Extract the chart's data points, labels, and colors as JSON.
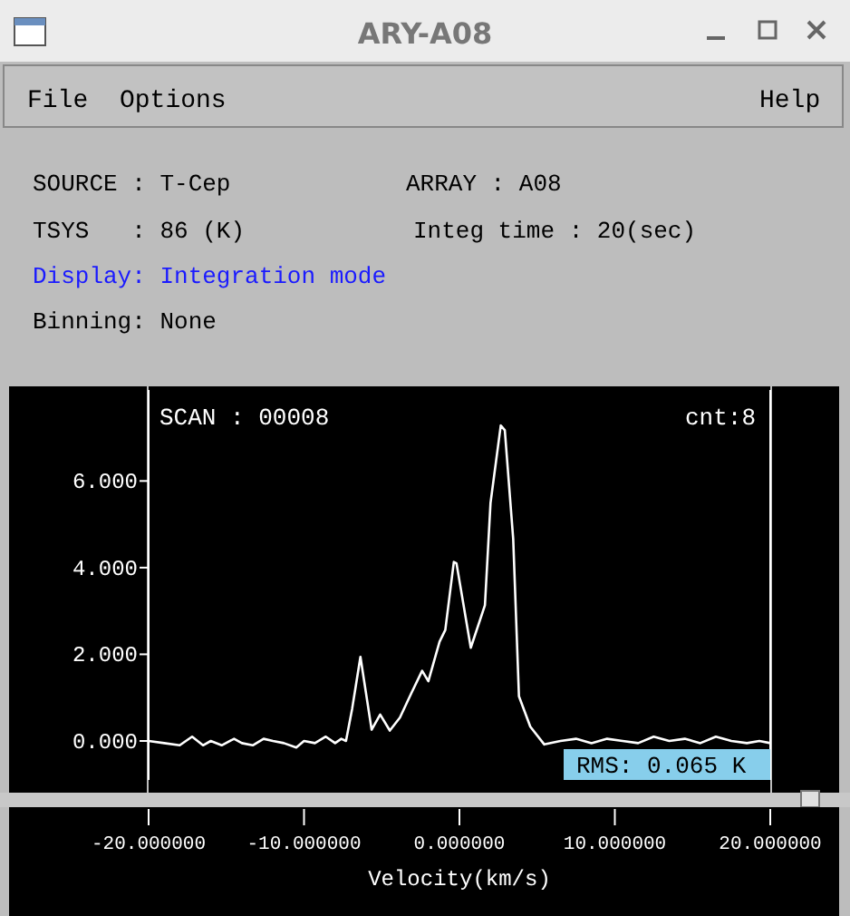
{
  "chart_data": {
    "type": "line",
    "title": "ARY-A08",
    "xlabel": "Velocity(km/s)",
    "annotations": [
      "File",
      "Options",
      "Help",
      "SOURCE : T-Cep",
      "ARRAY : A08",
      "TSYS   : 86 (K)",
      "Integ time : 20(sec)",
      "Display: Integration mode",
      "Binning: None",
      "SCAN : 00008",
      "cnt:8",
      "RMS: 0.065 K"
    ],
    "xlim": [
      -20,
      20
    ],
    "ylim": [
      -0.9,
      8.1
    ],
    "xticks": [
      {
        "value": -20,
        "label": "-20.000000"
      },
      {
        "value": -10,
        "label": "-10.000000"
      },
      {
        "value": 0,
        "label": "0.000000"
      },
      {
        "value": 10,
        "label": "10.000000"
      },
      {
        "value": 20,
        "label": "20.000000"
      }
    ],
    "yticks": [
      {
        "value": 0,
        "label": "0.000"
      },
      {
        "value": 2,
        "label": "2.000"
      },
      {
        "value": 4,
        "label": "4.000"
      },
      {
        "value": 6,
        "label": "6.000"
      }
    ],
    "grid": false,
    "marker": "none",
    "line_style": "solid",
    "series": [
      {
        "color": "#ffffff",
        "x": [
          -20,
          -19,
          -18,
          -17.2,
          -16.5,
          -16,
          -15.3,
          -14.5,
          -14,
          -13.3,
          -12.6,
          -12,
          -11.3,
          -10.5,
          -10,
          -9.3,
          -8.6,
          -8,
          -7.6,
          -7.3,
          -6.9,
          -6.37,
          -5.65,
          -5.1,
          -4.48,
          -3.83,
          -3.1,
          -2.4,
          -2.0,
          -1.28,
          -0.91,
          -0.36,
          -0.19,
          0.73,
          1.64,
          2.0,
          2.66,
          2.92,
          3.46,
          3.83,
          4.56,
          5.46,
          6.5,
          7.5,
          8.5,
          9.5,
          10.5,
          11.5,
          12.5,
          13.5,
          14.5,
          15.5,
          16.5,
          17.5,
          18.5,
          19.3,
          20
        ],
        "values": [
          0,
          -0.05,
          -0.1,
          0.1,
          -0.1,
          0,
          -0.1,
          0.05,
          -0.05,
          -0.1,
          0.05,
          0,
          -0.05,
          -0.15,
          0,
          -0.05,
          0.1,
          -0.05,
          0.05,
          0,
          0.75,
          1.94,
          0.26,
          0.61,
          0.24,
          0.54,
          1.1,
          1.62,
          1.38,
          2.29,
          2.56,
          4.13,
          4.1,
          2.15,
          3.13,
          5.49,
          7.28,
          7.17,
          4.66,
          1.03,
          0.33,
          -0.08,
          0,
          0.05,
          -0.05,
          0.05,
          0,
          -0.05,
          0.1,
          0,
          0.05,
          -0.05,
          0.1,
          0,
          -0.05,
          0,
          -0.05
        ]
      }
    ]
  }
}
